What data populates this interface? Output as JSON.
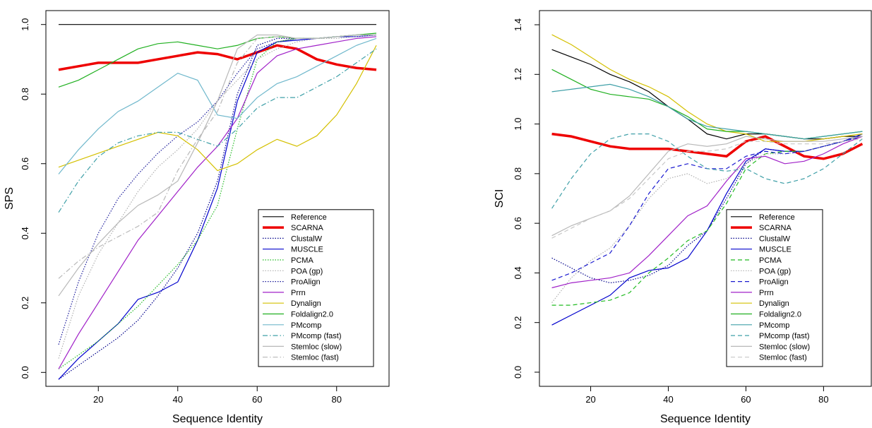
{
  "chart_data": [
    {
      "type": "line",
      "xlabel": "Sequence Identity",
      "ylabel": "SPS",
      "x": [
        10,
        15,
        20,
        25,
        30,
        35,
        40,
        45,
        50,
        55,
        60,
        65,
        70,
        75,
        80,
        85,
        90
      ],
      "xlim": [
        6.8,
        93.2
      ],
      "ylim": [
        -0.04,
        1.04
      ],
      "xticks": [
        20,
        40,
        60,
        80
      ],
      "yticks": [
        {
          "value": 0,
          "label": "0.0"
        },
        {
          "value": 0.2,
          "label": "0.2"
        },
        {
          "value": 0.4,
          "label": "0.4"
        },
        {
          "value": 0.6,
          "label": "0.6"
        },
        {
          "value": 0.8,
          "label": "0.8"
        },
        {
          "value": 1,
          "label": "1.0"
        }
      ],
      "legend": "bottom-right",
      "series": [
        {
          "name": "Reference",
          "color": "#000000",
          "style": "solid",
          "values": [
            1,
            1,
            1,
            1,
            1,
            1,
            1,
            1,
            1,
            1,
            1,
            1,
            1,
            1,
            1,
            1,
            1
          ]
        },
        {
          "name": "SCARNA",
          "color": "#ee0000",
          "style": "thick",
          "values": [
            0.87,
            0.88,
            0.89,
            0.89,
            0.89,
            0.9,
            0.91,
            0.92,
            0.915,
            0.9,
            0.92,
            0.94,
            0.93,
            0.9,
            0.885,
            0.875,
            0.87
          ]
        },
        {
          "name": "ClustalW",
          "color": "#00008b",
          "style": "dotted",
          "values": [
            -0.02,
            0.02,
            0.06,
            0.1,
            0.15,
            0.22,
            0.3,
            0.4,
            0.55,
            0.8,
            0.94,
            0.96,
            0.96,
            0.96,
            0.965,
            0.97,
            0.97
          ]
        },
        {
          "name": "MUSCLE",
          "color": "#0000cd",
          "style": "solid",
          "values": [
            -0.02,
            0.04,
            0.09,
            0.14,
            0.21,
            0.23,
            0.26,
            0.38,
            0.53,
            0.78,
            0.92,
            0.95,
            0.955,
            0.96,
            0.965,
            0.965,
            0.97
          ]
        },
        {
          "name": "PCMA",
          "color": "#22bb22",
          "style": "dotted",
          "values": [
            0.01,
            0.05,
            0.09,
            0.14,
            0.19,
            0.25,
            0.31,
            0.38,
            0.48,
            0.7,
            0.9,
            0.95,
            0.96,
            0.96,
            0.965,
            0.97,
            0.97
          ]
        },
        {
          "name": "POA (gp)",
          "color": "#b0b0b0",
          "style": "dotted",
          "values": [
            0.04,
            0.22,
            0.34,
            0.43,
            0.52,
            0.59,
            0.64,
            0.7,
            0.78,
            0.84,
            0.9,
            0.93,
            0.95,
            0.96,
            0.96,
            0.965,
            0.97
          ]
        },
        {
          "name": "ProAlign",
          "color": "#1a1a9a",
          "style": "dotted",
          "values": [
            0.08,
            0.26,
            0.4,
            0.5,
            0.57,
            0.63,
            0.68,
            0.72,
            0.78,
            0.86,
            0.93,
            0.95,
            0.96,
            0.96,
            0.965,
            0.97,
            0.97
          ]
        },
        {
          "name": "Prrn",
          "color": "#a020c8",
          "style": "solid",
          "values": [
            0.01,
            0.11,
            0.2,
            0.29,
            0.38,
            0.45,
            0.52,
            0.59,
            0.65,
            0.73,
            0.86,
            0.91,
            0.93,
            0.94,
            0.95,
            0.96,
            0.965
          ]
        },
        {
          "name": "Dynalign",
          "color": "#d4c000",
          "style": "solid",
          "values": [
            0.59,
            0.61,
            0.63,
            0.65,
            0.67,
            0.69,
            0.68,
            0.64,
            0.58,
            0.6,
            0.64,
            0.67,
            0.65,
            0.68,
            0.74,
            0.83,
            0.94
          ]
        },
        {
          "name": "Foldalign2.0",
          "color": "#20b020",
          "style": "solid",
          "values": [
            0.82,
            0.84,
            0.87,
            0.9,
            0.93,
            0.945,
            0.95,
            0.94,
            0.93,
            0.94,
            0.96,
            0.965,
            0.96,
            0.96,
            0.965,
            0.97,
            0.975
          ]
        },
        {
          "name": "PMcomp",
          "color": "#70b8cc",
          "style": "solid",
          "values": [
            0.57,
            0.64,
            0.7,
            0.75,
            0.78,
            0.82,
            0.86,
            0.84,
            0.74,
            0.73,
            0.79,
            0.83,
            0.85,
            0.88,
            0.91,
            0.94,
            0.96
          ]
        },
        {
          "name": "PMcomp (fast)",
          "color": "#40a0a8",
          "style": "dashdot",
          "values": [
            0.46,
            0.55,
            0.62,
            0.66,
            0.68,
            0.69,
            0.69,
            0.67,
            0.65,
            0.7,
            0.76,
            0.79,
            0.79,
            0.82,
            0.85,
            0.89,
            0.93
          ]
        },
        {
          "name": "Stemloc (slow)",
          "color": "#b8b8b8",
          "style": "solid",
          "values": [
            0.22,
            0.3,
            0.37,
            0.43,
            0.48,
            0.51,
            0.55,
            0.66,
            0.78,
            0.93,
            0.97,
            0.97,
            0.96,
            0.96,
            0.965,
            0.97,
            0.97
          ]
        },
        {
          "name": "Stemloc (fast)",
          "color": "#b8b8b8",
          "style": "dashdot",
          "values": [
            0.27,
            0.32,
            0.36,
            0.39,
            0.42,
            0.46,
            0.58,
            0.67,
            0.75,
            0.89,
            0.96,
            0.965,
            0.96,
            0.96,
            0.965,
            0.97,
            0.97
          ]
        }
      ]
    },
    {
      "type": "line",
      "xlabel": "Sequence Identity",
      "ylabel": "SCI",
      "x": [
        10,
        15,
        20,
        25,
        30,
        35,
        40,
        45,
        50,
        55,
        60,
        65,
        70,
        75,
        80,
        85,
        90
      ],
      "xlim": [
        6.8,
        92.3
      ],
      "ylim": [
        -0.057,
        1.457
      ],
      "xticks": [
        20,
        40,
        60,
        80
      ],
      "yticks": [
        {
          "value": 0,
          "label": "0.0"
        },
        {
          "value": 0.2,
          "label": "0.2"
        },
        {
          "value": 0.4,
          "label": "0.4"
        },
        {
          "value": 0.6,
          "label": "0.6"
        },
        {
          "value": 0.8,
          "label": "0.8"
        },
        {
          "value": 1,
          "label": "1.0"
        },
        {
          "value": 1.2,
          "label": "1.2"
        },
        {
          "value": 1.4,
          "label": "1.4"
        }
      ],
      "legend": "bottom-right",
      "series": [
        {
          "name": "Reference",
          "color": "#000000",
          "style": "solid",
          "values": [
            1.3,
            1.27,
            1.24,
            1.2,
            1.17,
            1.13,
            1.07,
            1.02,
            0.96,
            0.94,
            0.96,
            0.96,
            0.95,
            0.94,
            0.94,
            0.95,
            0.95
          ]
        },
        {
          "name": "SCARNA",
          "color": "#ee0000",
          "style": "thick",
          "values": [
            0.96,
            0.95,
            0.93,
            0.91,
            0.9,
            0.9,
            0.9,
            0.89,
            0.88,
            0.87,
            0.93,
            0.95,
            0.91,
            0.87,
            0.86,
            0.88,
            0.92
          ]
        },
        {
          "name": "ClustalW",
          "color": "#00008b",
          "style": "dotted",
          "values": [
            0.46,
            0.42,
            0.38,
            0.36,
            0.37,
            0.39,
            0.43,
            0.51,
            0.57,
            0.7,
            0.84,
            0.9,
            0.89,
            0.89,
            0.91,
            0.93,
            0.95
          ]
        },
        {
          "name": "MUSCLE",
          "color": "#0000cd",
          "style": "solid",
          "values": [
            0.19,
            0.23,
            0.27,
            0.31,
            0.38,
            0.41,
            0.42,
            0.46,
            0.57,
            0.72,
            0.85,
            0.9,
            0.89,
            0.89,
            0.91,
            0.93,
            0.96
          ]
        },
        {
          "name": "PCMA",
          "color": "#22bb22",
          "style": "dashed",
          "values": [
            0.27,
            0.27,
            0.28,
            0.29,
            0.32,
            0.4,
            0.46,
            0.53,
            0.57,
            0.68,
            0.82,
            0.88,
            0.89,
            0.89,
            0.91,
            0.93,
            0.95
          ]
        },
        {
          "name": "POA (gp)",
          "color": "#b0b0b0",
          "style": "dotted",
          "values": [
            0.28,
            0.38,
            0.45,
            0.5,
            0.59,
            0.7,
            0.78,
            0.8,
            0.76,
            0.78,
            0.84,
            0.88,
            0.88,
            0.89,
            0.91,
            0.93,
            0.95
          ]
        },
        {
          "name": "ProAlign",
          "color": "#1a1ad0",
          "style": "dashed",
          "values": [
            0.37,
            0.4,
            0.44,
            0.48,
            0.59,
            0.72,
            0.82,
            0.84,
            0.82,
            0.82,
            0.87,
            0.89,
            0.88,
            0.89,
            0.91,
            0.93,
            0.95
          ]
        },
        {
          "name": "Prrn",
          "color": "#a020c8",
          "style": "solid",
          "values": [
            0.34,
            0.36,
            0.37,
            0.38,
            0.4,
            0.47,
            0.55,
            0.63,
            0.67,
            0.77,
            0.86,
            0.87,
            0.84,
            0.85,
            0.88,
            0.92,
            0.95
          ]
        },
        {
          "name": "Dynalign",
          "color": "#d4c000",
          "style": "solid",
          "values": [
            1.36,
            1.32,
            1.27,
            1.22,
            1.18,
            1.15,
            1.11,
            1.05,
            1,
            0.97,
            0.96,
            0.93,
            0.93,
            0.93,
            0.94,
            0.95,
            0.96
          ]
        },
        {
          "name": "Foldalign2.0",
          "color": "#20b020",
          "style": "solid",
          "values": [
            1.22,
            1.18,
            1.14,
            1.12,
            1.11,
            1.1,
            1.07,
            1.03,
            0.98,
            0.97,
            0.97,
            0.96,
            0.95,
            0.94,
            0.95,
            0.96,
            0.97
          ]
        },
        {
          "name": "PMcomp",
          "color": "#40a0a8",
          "style": "solid",
          "values": [
            1.13,
            1.14,
            1.15,
            1.16,
            1.14,
            1.11,
            1.07,
            1.02,
            0.99,
            0.98,
            0.97,
            0.96,
            0.95,
            0.94,
            0.95,
            0.96,
            0.97
          ]
        },
        {
          "name": "PMcomp (fast)",
          "color": "#40a0a8",
          "style": "dashed",
          "values": [
            0.66,
            0.78,
            0.88,
            0.94,
            0.96,
            0.96,
            0.93,
            0.87,
            0.82,
            0.81,
            0.82,
            0.78,
            0.76,
            0.78,
            0.82,
            0.88,
            0.94
          ]
        },
        {
          "name": "Stemloc (slow)",
          "color": "#b8b8b8",
          "style": "solid",
          "values": [
            0.55,
            0.59,
            0.62,
            0.65,
            0.71,
            0.8,
            0.89,
            0.92,
            0.91,
            0.92,
            0.95,
            0.94,
            0.93,
            0.93,
            0.93,
            0.94,
            0.95
          ]
        },
        {
          "name": "Stemloc (fast)",
          "color": "#c8c8c8",
          "style": "dashed",
          "values": [
            0.54,
            0.58,
            0.62,
            0.65,
            0.7,
            0.78,
            0.86,
            0.89,
            0.89,
            0.9,
            0.93,
            0.93,
            0.92,
            0.92,
            0.92,
            0.93,
            0.94
          ]
        }
      ]
    }
  ]
}
